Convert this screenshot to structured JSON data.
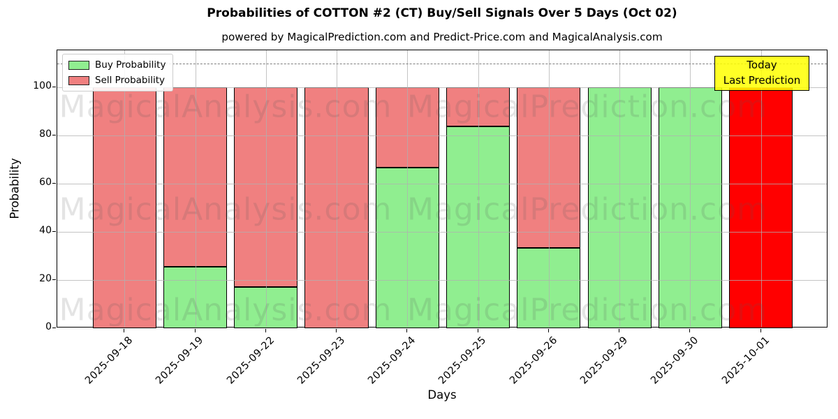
{
  "title": "Probabilities of COTTON #2 (CT) Buy/Sell Signals Over 5 Days (Oct 02)",
  "subtitle": "powered by MagicalPrediction.com and Predict-Price.com and MagicalAnalysis.com",
  "watermarks": {
    "left_text": "MagicalAnalysis.com",
    "right_text": "MagicalPrediction.com"
  },
  "legend": {
    "items": [
      {
        "label": "Buy Probability",
        "color": "#90ee90"
      },
      {
        "label": "Sell Probability",
        "color": "#f08080"
      }
    ]
  },
  "annotation": {
    "line1": "Today",
    "line2": "Last Prediction",
    "bg_color": "#ffff00"
  },
  "chart_data": {
    "type": "bar",
    "stacked": true,
    "title": "Probabilities of COTTON #2 (CT) Buy/Sell Signals Over 5 Days (Oct 02)",
    "xlabel": "Days",
    "ylabel": "Probability",
    "categories": [
      "2025-09-18",
      "2025-09-19",
      "2025-09-22",
      "2025-09-23",
      "2025-09-24",
      "2025-09-25",
      "2025-09-26",
      "2025-09-29",
      "2025-09-30",
      "2025-10-01"
    ],
    "series": [
      {
        "name": "Buy Probability",
        "color": "#90ee90",
        "values": [
          0,
          25.5,
          17,
          0,
          66.7,
          84,
          33.3,
          100,
          100,
          0
        ]
      },
      {
        "name": "Sell Probability",
        "color": "#f08080",
        "values": [
          100,
          74.5,
          83,
          100,
          33.3,
          16,
          66.7,
          0,
          0,
          100
        ]
      }
    ],
    "highlight_last_bar": {
      "index": 9,
      "color": "#ff0000",
      "meaning": "Today / Last Prediction"
    },
    "yticks": [
      0,
      20,
      40,
      60,
      80,
      100
    ],
    "ylim": [
      0,
      115.5
    ],
    "dashed_line_y": 110,
    "grid": true,
    "legend_position": "upper left",
    "bar_edge_color": "#000000"
  }
}
